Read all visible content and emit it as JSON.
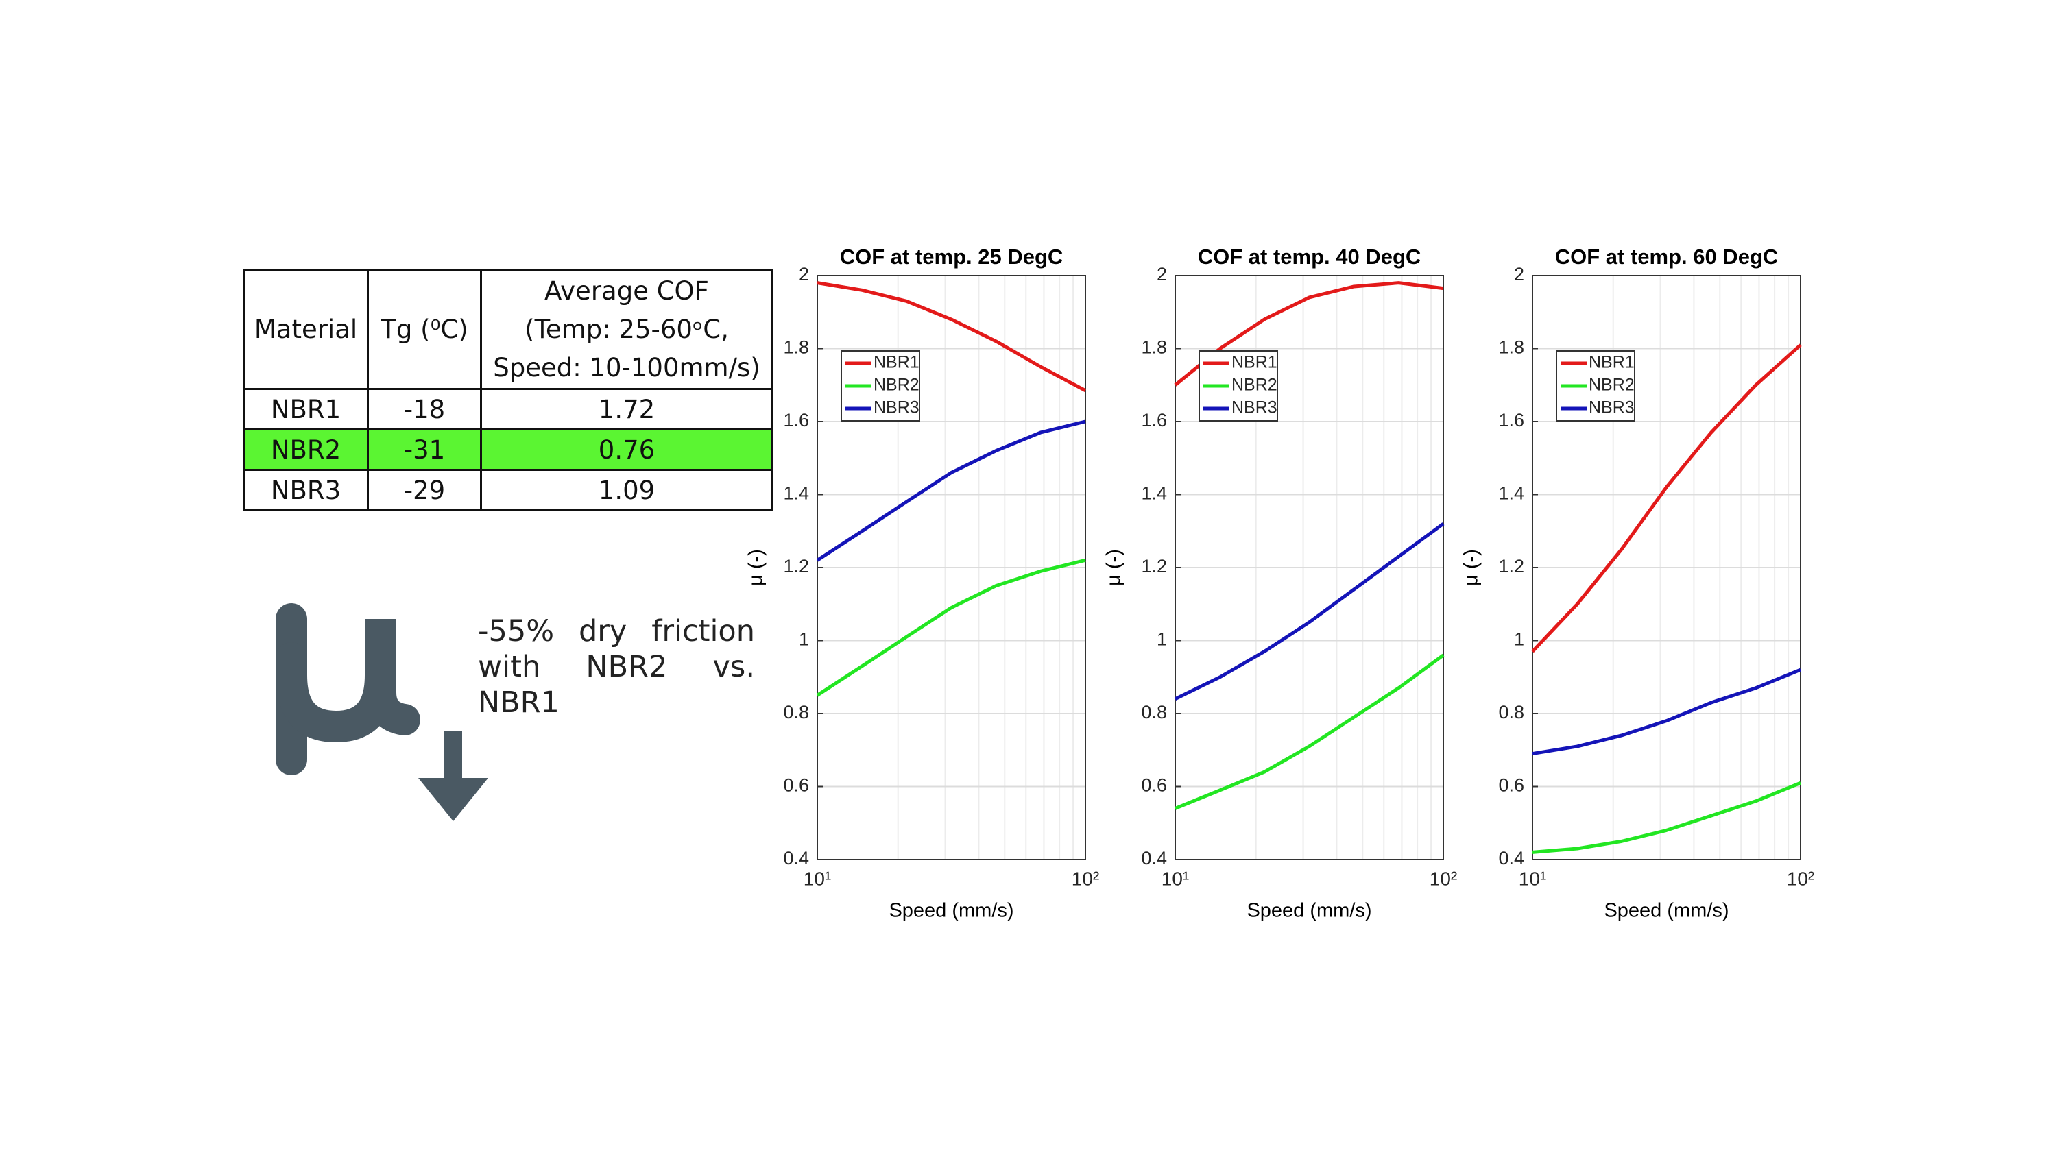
{
  "table": {
    "header": [
      "Material",
      "Tg (⁰C)",
      "Average COF\n(Temp: 25-60ᵒC,\nSpeed: 10-100mm/s)"
    ],
    "rows": [
      [
        "NBR1",
        "-18",
        "1.72"
      ],
      [
        "NBR2",
        "-31",
        "0.76"
      ],
      [
        "NBR3",
        "-29",
        "1.09"
      ]
    ]
  },
  "annotation": [
    "-55% dry friction",
    "with NBR2 vs. NBR1"
  ],
  "chart_data": [
    {
      "type": "line",
      "title": "COF at temp. 25 DegC",
      "x_label": "Speed (mm/s)",
      "y_label": "μ (-)",
      "x": [
        10,
        14.7,
        21.5,
        31.6,
        46.4,
        68.1,
        100
      ],
      "xscale": "log",
      "xlim": [
        10,
        100
      ],
      "xticks": [
        {
          "value": 10,
          "label": "10¹"
        },
        {
          "value": 100,
          "label": "10²"
        }
      ],
      "ylim": [
        0.4,
        2
      ],
      "yticks": [
        0.4,
        0.6,
        0.8,
        1,
        1.2,
        1.4,
        1.6,
        1.8,
        2
      ],
      "grid": true,
      "legend": "upper left",
      "series": [
        {
          "name": "NBR1",
          "color": "#e31a1a",
          "values": [
            1.98,
            1.96,
            1.93,
            1.88,
            1.82,
            1.75,
            1.685
          ]
        },
        {
          "name": "NBR2",
          "color": "#22e622",
          "values": [
            0.85,
            0.93,
            1.01,
            1.09,
            1.15,
            1.19,
            1.22
          ]
        },
        {
          "name": "NBR3",
          "color": "#1414b8",
          "values": [
            1.22,
            1.3,
            1.38,
            1.46,
            1.52,
            1.57,
            1.6
          ]
        }
      ]
    },
    {
      "type": "line",
      "title": "COF at temp. 40 DegC",
      "x_label": "Speed (mm/s)",
      "y_label": "μ (-)",
      "x": [
        10,
        14.7,
        21.5,
        31.6,
        46.4,
        68.1,
        100
      ],
      "xscale": "log",
      "xlim": [
        10,
        100
      ],
      "xticks": [
        {
          "value": 10,
          "label": "10¹"
        },
        {
          "value": 100,
          "label": "10²"
        }
      ],
      "ylim": [
        0.4,
        2
      ],
      "yticks": [
        0.4,
        0.6,
        0.8,
        1,
        1.2,
        1.4,
        1.6,
        1.8,
        2
      ],
      "grid": true,
      "legend": "upper left",
      "series": [
        {
          "name": "NBR1",
          "color": "#e31a1a",
          "values": [
            1.7,
            1.8,
            1.88,
            1.94,
            1.97,
            1.98,
            1.965
          ]
        },
        {
          "name": "NBR2",
          "color": "#22e622",
          "values": [
            0.54,
            0.59,
            0.64,
            0.71,
            0.79,
            0.87,
            0.96
          ]
        },
        {
          "name": "NBR3",
          "color": "#1414b8",
          "values": [
            0.84,
            0.9,
            0.97,
            1.05,
            1.14,
            1.23,
            1.32
          ]
        }
      ]
    },
    {
      "type": "line",
      "title": "COF at temp. 60 DegC",
      "x_label": "Speed (mm/s)",
      "y_label": "μ (-)",
      "x": [
        10,
        14.7,
        21.5,
        31.6,
        46.4,
        68.1,
        100
      ],
      "xscale": "log",
      "xlim": [
        10,
        100
      ],
      "xticks": [
        {
          "value": 10,
          "label": "10¹"
        },
        {
          "value": 100,
          "label": "10²"
        }
      ],
      "ylim": [
        0.4,
        2
      ],
      "yticks": [
        0.4,
        0.6,
        0.8,
        1,
        1.2,
        1.4,
        1.6,
        1.8,
        2
      ],
      "grid": true,
      "legend": "upper left",
      "series": [
        {
          "name": "NBR1",
          "color": "#e31a1a",
          "values": [
            0.97,
            1.1,
            1.25,
            1.42,
            1.57,
            1.7,
            1.81
          ]
        },
        {
          "name": "NBR2",
          "color": "#22e622",
          "values": [
            0.42,
            0.43,
            0.45,
            0.48,
            0.52,
            0.56,
            0.61
          ]
        },
        {
          "name": "NBR3",
          "color": "#1414b8",
          "values": [
            0.69,
            0.71,
            0.74,
            0.78,
            0.83,
            0.87,
            0.92
          ]
        }
      ]
    }
  ]
}
